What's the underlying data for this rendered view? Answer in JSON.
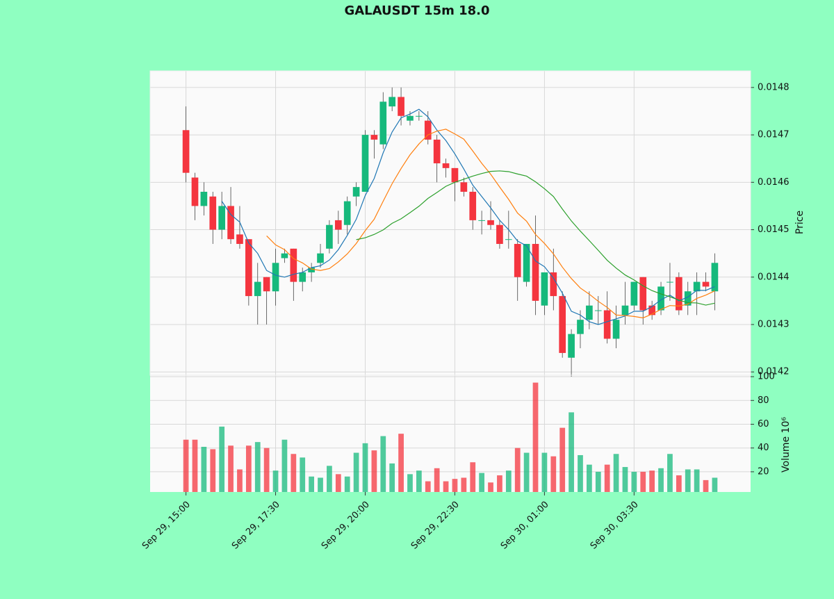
{
  "chart_data": {
    "type": "candlestick",
    "title": "GALAUSDT 15m 18.0",
    "categories": [
      "Sep 29, 15:00",
      null,
      null,
      null,
      null,
      null,
      null,
      null,
      null,
      null,
      "Sep 29, 17:30",
      null,
      null,
      null,
      null,
      null,
      null,
      null,
      null,
      null,
      "Sep 29, 20:00",
      null,
      null,
      null,
      null,
      null,
      null,
      null,
      null,
      null,
      "Sep 29, 22:30",
      null,
      null,
      null,
      null,
      null,
      null,
      null,
      null,
      null,
      "Sep 30, 01:00",
      null,
      null,
      null,
      null,
      null,
      null,
      null,
      null,
      null,
      "Sep 30, 03:30",
      null,
      null,
      null,
      null,
      null,
      null,
      null,
      null,
      null
    ],
    "open": [
      0.01471,
      0.01461,
      0.01455,
      0.01457,
      0.0145,
      0.01455,
      0.01449,
      0.01448,
      0.01436,
      0.0144,
      0.01437,
      0.01444,
      0.01446,
      0.01439,
      0.01441,
      0.01443,
      0.01446,
      0.01452,
      0.01451,
      0.01457,
      0.01458,
      0.0147,
      0.01468,
      0.01476,
      0.01478,
      0.01473,
      0.01474,
      0.01473,
      0.01469,
      0.01464,
      0.01463,
      0.0146,
      0.01458,
      0.01452,
      0.01452,
      0.01451,
      0.01448,
      0.01447,
      0.01439,
      0.01447,
      0.01434,
      0.01441,
      0.01436,
      0.01423,
      0.01428,
      0.01431,
      0.01433,
      0.01433,
      0.01427,
      0.01432,
      0.01434,
      0.0144,
      0.01434,
      0.01433,
      0.01439,
      0.0144,
      0.01434,
      0.01437,
      0.01439,
      0.01437
    ],
    "high": [
      0.01476,
      0.01462,
      0.0146,
      0.01458,
      0.01458,
      0.01459,
      0.01455,
      0.01448,
      0.01443,
      0.0144,
      0.01446,
      0.01446,
      0.01446,
      0.01442,
      0.01443,
      0.01447,
      0.01452,
      0.01454,
      0.01457,
      0.0146,
      0.01471,
      0.01471,
      0.01479,
      0.0148,
      0.0148,
      0.01475,
      0.01475,
      0.01475,
      0.0147,
      0.01465,
      0.01463,
      0.01461,
      0.01459,
      0.01454,
      0.01456,
      0.01452,
      0.01454,
      0.01448,
      0.01447,
      0.01453,
      0.01441,
      0.01446,
      0.01437,
      0.01429,
      0.01433,
      0.01437,
      0.01436,
      0.01437,
      0.01434,
      0.01439,
      0.01439,
      0.0144,
      0.01435,
      0.01439,
      0.01443,
      0.01441,
      0.01439,
      0.01441,
      0.01441,
      0.01445
    ],
    "low": [
      0.0146,
      0.01452,
      0.01453,
      0.01447,
      0.01448,
      0.01447,
      0.01446,
      0.01434,
      0.0143,
      0.0143,
      0.01434,
      0.01443,
      0.01435,
      0.01437,
      0.01439,
      0.01442,
      0.01445,
      0.01447,
      0.01449,
      0.01455,
      0.01458,
      0.01465,
      0.01467,
      0.01475,
      0.01472,
      0.01472,
      0.01473,
      0.01468,
      0.0146,
      0.01461,
      0.01456,
      0.01457,
      0.0145,
      0.01449,
      0.0145,
      0.01446,
      0.01446,
      0.01435,
      0.01438,
      0.01432,
      0.01432,
      0.01433,
      0.01423,
      0.01419,
      0.01425,
      0.01429,
      0.0143,
      0.01426,
      0.01425,
      0.0143,
      0.01433,
      0.0143,
      0.01431,
      0.01432,
      0.01435,
      0.01432,
      0.01432,
      0.01432,
      0.01437,
      0.01433
    ],
    "close": [
      0.01462,
      0.01455,
      0.01458,
      0.0145,
      0.01455,
      0.01448,
      0.01447,
      0.01436,
      0.01439,
      0.01437,
      0.01443,
      0.01445,
      0.01439,
      0.01441,
      0.01442,
      0.01445,
      0.01451,
      0.0145,
      0.01456,
      0.01459,
      0.0147,
      0.01469,
      0.01477,
      0.01478,
      0.01474,
      0.01474,
      0.01474,
      0.01469,
      0.01464,
      0.01463,
      0.0146,
      0.01458,
      0.01452,
      0.01452,
      0.01451,
      0.01447,
      0.01448,
      0.0144,
      0.01447,
      0.01435,
      0.01441,
      0.01436,
      0.01424,
      0.01428,
      0.01431,
      0.01434,
      0.01433,
      0.01427,
      0.01431,
      0.01434,
      0.01439,
      0.01433,
      0.01432,
      0.01438,
      0.01439,
      0.01433,
      0.01437,
      0.01439,
      0.01438,
      0.01443
    ],
    "volume": [
      47,
      47,
      41,
      39,
      58,
      42,
      22,
      42,
      45,
      40,
      21,
      47,
      35,
      32,
      16,
      15,
      25,
      18,
      16,
      36,
      44,
      38,
      50,
      27,
      52,
      18,
      21,
      12,
      23,
      12,
      14,
      15,
      28,
      19,
      11,
      17,
      21,
      40,
      36,
      95,
      36,
      33,
      57,
      70,
      34,
      26,
      20,
      26,
      35,
      24,
      20,
      20,
      21,
      23,
      35,
      17,
      22,
      22,
      13,
      15
    ],
    "up_color": "#16b97c",
    "down_color": "#f4353f",
    "moving_averages": [
      {
        "color": "#1f77b4",
        "values": [
          null,
          null,
          null,
          null,
          0.01456,
          0.014532,
          0.014516,
          0.014472,
          0.01445,
          0.014414,
          0.014404,
          0.0144,
          0.014406,
          0.01441,
          0.01442,
          0.014424,
          0.014436,
          0.014458,
          0.014488,
          0.014522,
          0.014572,
          0.014608,
          0.014662,
          0.014706,
          0.014736,
          0.014744,
          0.014754,
          0.014738,
          0.01471,
          0.014688,
          0.01466,
          0.014628,
          0.014594,
          0.01457,
          0.014546,
          0.01452,
          0.0145,
          0.014476,
          0.014466,
          0.014434,
          0.014422,
          0.014398,
          0.014366,
          0.014328,
          0.01432,
          0.014306,
          0.0143,
          0.014306,
          0.014312,
          0.014318,
          0.014328,
          0.014328,
          0.014338,
          0.014352,
          0.014362,
          0.01435,
          0.014358,
          0.014372,
          0.014372,
          0.01438
        ]
      },
      {
        "color": "#ff7f0e",
        "values": [
          null,
          null,
          null,
          null,
          null,
          null,
          null,
          null,
          null,
          0.014487,
          0.014468,
          0.014458,
          0.014439,
          0.01443,
          0.014417,
          0.014414,
          0.014418,
          0.014432,
          0.014449,
          0.014471,
          0.014498,
          0.014522,
          0.01456,
          0.014597,
          0.014629,
          0.014658,
          0.014681,
          0.0147,
          0.014708,
          0.014712,
          0.014702,
          0.014691,
          0.014666,
          0.01464,
          0.014617,
          0.01459,
          0.014564,
          0.014535,
          0.014518,
          0.01449,
          0.014471,
          0.014449,
          0.014421,
          0.014397,
          0.014377,
          0.014364,
          0.014349,
          0.014336,
          0.01432,
          0.014319,
          0.014317,
          0.014314,
          0.014322,
          0.014332,
          0.01434,
          0.014339,
          0.014343,
          0.014355,
          0.014362,
          0.014371
        ]
      },
      {
        "color": "#2ca02c",
        "values": [
          null,
          null,
          null,
          null,
          null,
          null,
          null,
          null,
          null,
          null,
          null,
          null,
          null,
          null,
          null,
          null,
          null,
          null,
          null,
          0.014479,
          0.014483,
          0.01449,
          0.0144995,
          0.0145135,
          0.014523,
          0.014536,
          0.0145495,
          0.014566,
          0.0145785,
          0.0145915,
          0.0146,
          0.0146065,
          0.014613,
          0.0146185,
          0.014623,
          0.014624,
          0.0146225,
          0.0146175,
          0.014613,
          0.014601,
          0.0145865,
          0.01457,
          0.0145435,
          0.0145185,
          0.014497,
          0.014477,
          0.0144565,
          0.0144355,
          0.014419,
          0.0144045,
          0.014394,
          0.0143815,
          0.0143715,
          0.0143645,
          0.0143585,
          0.0143515,
          0.014346,
          0.0143455,
          0.014341,
          0.014345
        ]
      }
    ],
    "ylim": [
      0.014193,
      0.014835
    ],
    "yticks": [
      0.0142,
      0.0143,
      0.0144,
      0.0145,
      0.0146,
      0.0147,
      0.0148
    ],
    "ylabel": "Price",
    "volume_ylim": [
      3,
      101.2
    ],
    "volume_yticks": [
      20,
      40,
      60,
      80,
      100
    ],
    "volume_label": "Volume",
    "volume_scale": "10⁶",
    "grid": true
  }
}
